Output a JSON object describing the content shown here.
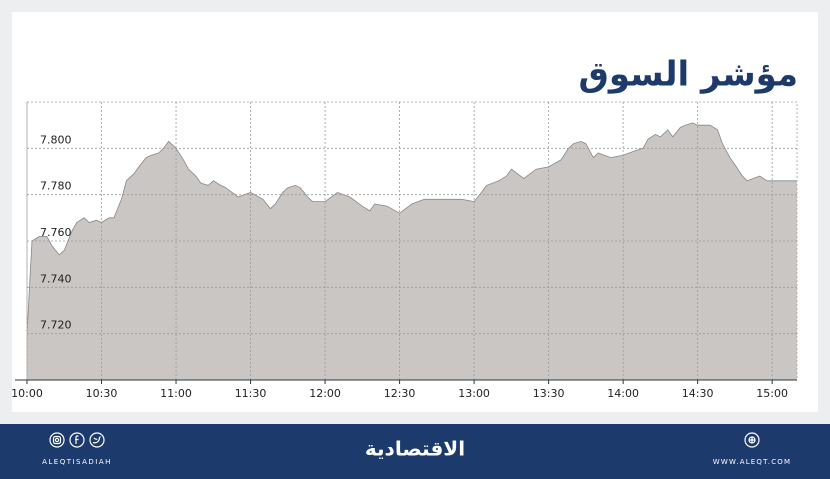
{
  "chart_data": {
    "type": "area",
    "title": "مؤشر السوق",
    "x": [
      0,
      2,
      5,
      8,
      10,
      13,
      15,
      18,
      20,
      23,
      25,
      28,
      30,
      33,
      35,
      38,
      40,
      43,
      45,
      48,
      50,
      53,
      55,
      57,
      60,
      63,
      65,
      68,
      70,
      73,
      75,
      78,
      80,
      85,
      90,
      95,
      98,
      100,
      103,
      105,
      108,
      110,
      113,
      115,
      120,
      125,
      130,
      135,
      138,
      140,
      145,
      150,
      155,
      160,
      165,
      170,
      175,
      180,
      183,
      185,
      190,
      193,
      195,
      200,
      205,
      210,
      215,
      218,
      220,
      223,
      225,
      228,
      230,
      235,
      240,
      245,
      248,
      250,
      253,
      255,
      258,
      260,
      263,
      265,
      268,
      270,
      275,
      278,
      280,
      283,
      285,
      288,
      290,
      295,
      298,
      300,
      310
    ],
    "values": [
      7.72,
      7.76,
      7.762,
      7.762,
      7.758,
      7.754,
      7.756,
      7.764,
      7.768,
      7.77,
      7.768,
      7.769,
      7.768,
      7.77,
      7.77,
      7.778,
      7.786,
      7.789,
      7.792,
      7.796,
      7.797,
      7.798,
      7.8,
      7.803,
      7.8,
      7.795,
      7.791,
      7.788,
      7.785,
      7.784,
      7.786,
      7.784,
      7.783,
      7.779,
      7.781,
      7.778,
      7.774,
      7.776,
      7.781,
      7.783,
      7.784,
      7.783,
      7.779,
      7.777,
      7.777,
      7.781,
      7.779,
      7.775,
      7.773,
      7.776,
      7.775,
      7.772,
      7.776,
      7.778,
      7.778,
      7.778,
      7.778,
      7.777,
      7.781,
      7.784,
      7.786,
      7.788,
      7.791,
      7.787,
      7.791,
      7.792,
      7.795,
      7.8,
      7.802,
      7.803,
      7.802,
      7.796,
      7.798,
      7.796,
      7.797,
      7.799,
      7.8,
      7.804,
      7.806,
      7.805,
      7.808,
      7.805,
      7.809,
      7.81,
      7.811,
      7.81,
      7.81,
      7.808,
      7.802,
      7.796,
      7.793,
      7.788,
      7.786,
      7.788,
      7.786,
      7.786,
      7.786
    ],
    "color": "#cac6c4",
    "line_color": "#8a8785",
    "xlim": [
      0,
      310
    ],
    "xticks": [
      {
        "value": 0,
        "label": "10:00"
      },
      {
        "value": 30,
        "label": "10:30"
      },
      {
        "value": 60,
        "label": "11:00"
      },
      {
        "value": 90,
        "label": "11:30"
      },
      {
        "value": 120,
        "label": "12:00"
      },
      {
        "value": 150,
        "label": "12:30"
      },
      {
        "value": 180,
        "label": "13:00"
      },
      {
        "value": 210,
        "label": "13:30"
      },
      {
        "value": 240,
        "label": "14:00"
      },
      {
        "value": 270,
        "label": "14:30"
      },
      {
        "value": 300,
        "label": "15:00"
      }
    ],
    "ylim": [
      7.7,
      7.82
    ],
    "yticks": [
      {
        "value": 7.72,
        "label": "7.720"
      },
      {
        "value": 7.74,
        "label": "7.740"
      },
      {
        "value": 7.76,
        "label": "7.760"
      },
      {
        "value": 7.78,
        "label": "7.780"
      },
      {
        "value": 7.8,
        "label": "7.800"
      }
    ],
    "grid": true
  },
  "footer": {
    "brand": "الاقتصادية",
    "handle": "ALEQTISADIAH",
    "website": "WWW.ALEQT.COM"
  }
}
